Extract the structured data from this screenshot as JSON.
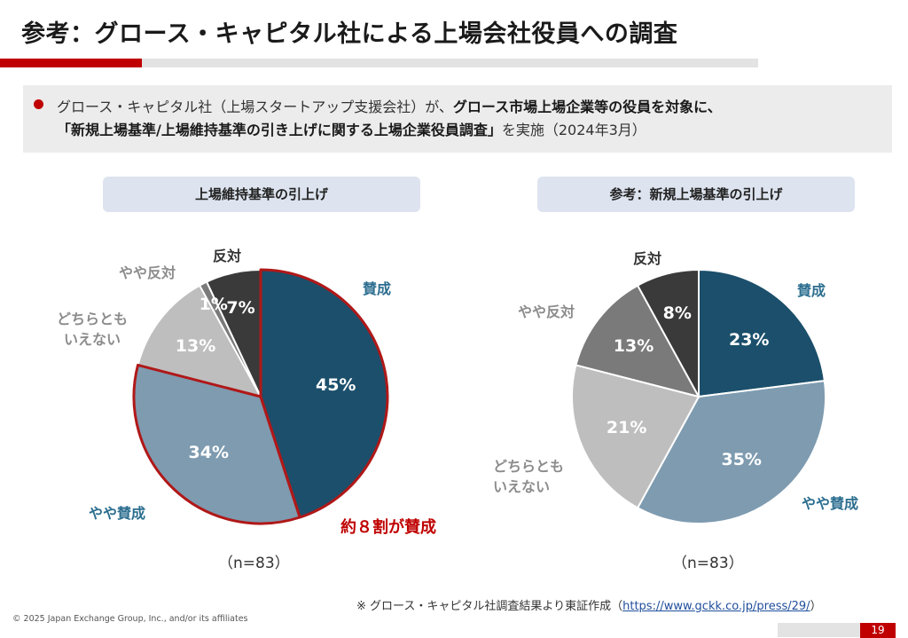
{
  "title": "参考：グロース・キャピタル社による上場会社役員への調査",
  "summary": {
    "line1_normal": "グロース・キャピタル社（上場スタートアップ支援会社）が、",
    "line1_bold": "グロース市場上場企業等の役員を対象に、",
    "line2_bold": "「新規上場基準/上場維持基準の引き上げに関する上場企業役員調査」",
    "line2_normal": "を実施（2024年3月）"
  },
  "chart_data": [
    {
      "type": "pie",
      "title": "上場維持基準の引上げ",
      "categories": [
        "賛成",
        "やや賛成",
        "どちらとも いえない",
        "やや反対",
        "反対"
      ],
      "values": [
        45,
        34,
        13,
        1,
        7
      ],
      "value_labels": [
        "45%",
        "34%",
        "13%",
        "1%",
        "7%"
      ],
      "colors": [
        "#1b4f6b",
        "#7e9bb0",
        "#bebebe",
        "#7a7a7a",
        "#3a3a3a"
      ],
      "highlight": [
        "賛成",
        "やや賛成"
      ],
      "annotation": "約８割が賛成",
      "n_label": "（n=83）"
    },
    {
      "type": "pie",
      "title": "参考：新規上場基準の引上げ",
      "categories": [
        "賛成",
        "やや賛成",
        "どちらとも いえない",
        "やや反対",
        "反対"
      ],
      "values": [
        23,
        35,
        21,
        13,
        8
      ],
      "value_labels": [
        "23%",
        "35%",
        "21%",
        "13%",
        "8%"
      ],
      "colors": [
        "#1b4f6b",
        "#7e9bb0",
        "#bebebe",
        "#7a7a7a",
        "#3a3a3a"
      ],
      "n_label": "（n=83）"
    }
  ],
  "labels": {
    "left": {
      "sansei": "賛成",
      "yaya_sansei": "やや賛成",
      "dochira1": "どちらとも",
      "dochira2": "いえない",
      "yaya_hantai": "やや反対",
      "hantai": "反対"
    },
    "right": {
      "sansei": "賛成",
      "yaya_sansei": "やや賛成",
      "dochira1": "どちらとも",
      "dochira2": "いえない",
      "yaya_hantai": "やや反対",
      "hantai": "反対"
    }
  },
  "footer": {
    "note_prefix": "※ グロース・キャピタル社調査結果より東証作成（",
    "note_link": "https://www.gckk.co.jp/press/29/",
    "note_suffix": "）",
    "copyright": "© 2025 Japan Exchange Group, Inc., and/or its affiliates",
    "page_number": "19"
  }
}
